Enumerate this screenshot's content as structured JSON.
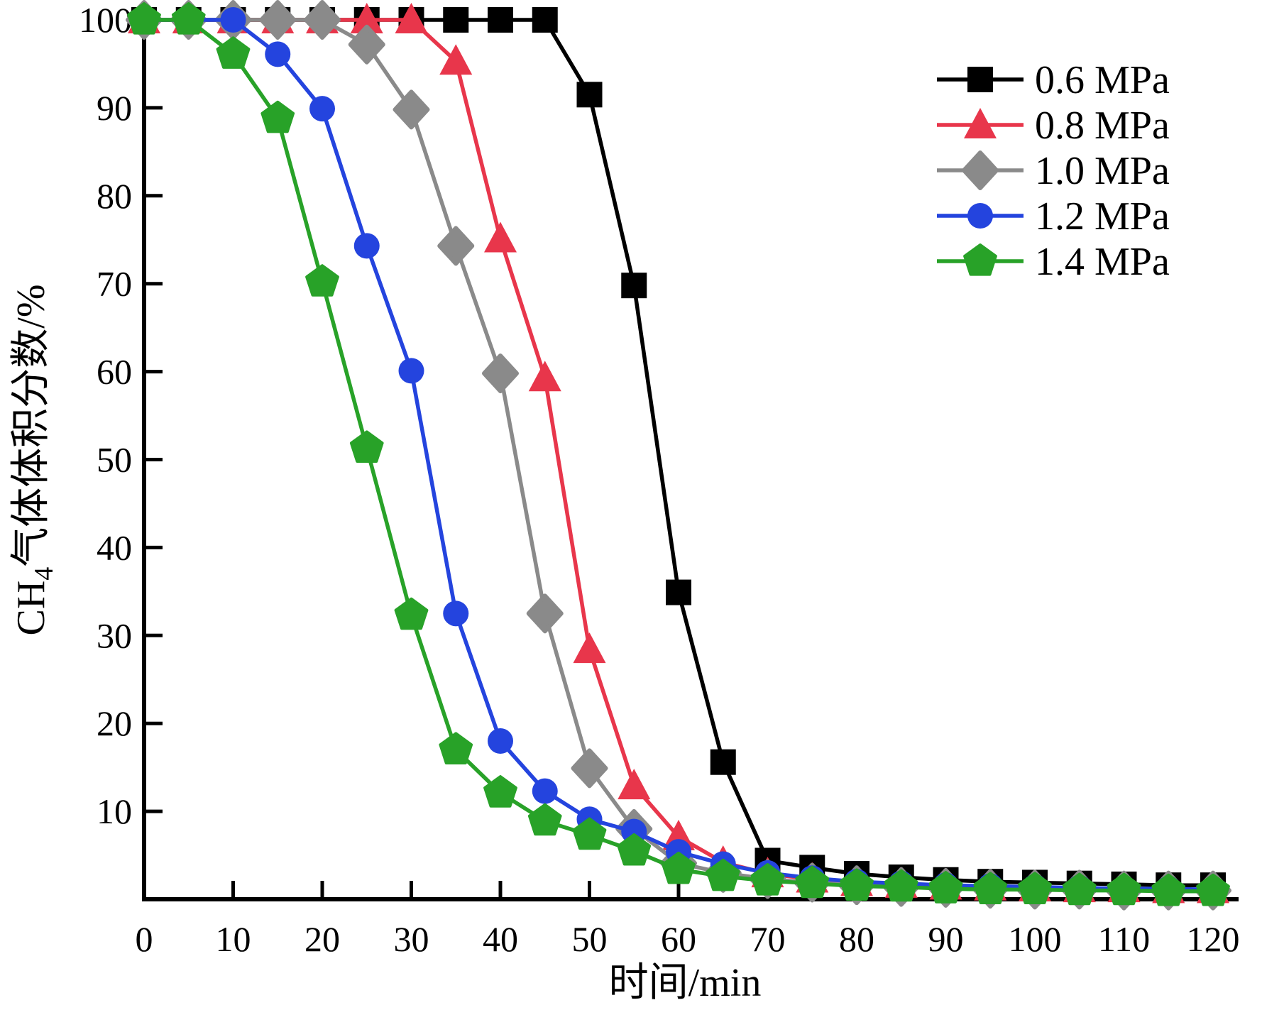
{
  "figure": {
    "background": "#ffffff"
  },
  "chart_data": {
    "type": "line",
    "title": "",
    "xlabel": "时间/min",
    "ylabel": "CH4气体体积分数/%",
    "ylabel_rich": {
      "base": "CH",
      "sub": "4",
      "rest": "气体体积分数/%"
    },
    "xlim": [
      0,
      120
    ],
    "ylim": [
      0,
      100
    ],
    "x_ticks": [
      0,
      10,
      20,
      30,
      40,
      50,
      60,
      70,
      80,
      90,
      100,
      110,
      120
    ],
    "y_ticks": [
      10,
      20,
      30,
      40,
      50,
      60,
      70,
      80,
      90,
      100
    ],
    "grid": false,
    "legend_position": "top-right",
    "x": [
      0,
      5,
      10,
      15,
      20,
      25,
      30,
      35,
      40,
      45,
      50,
      55,
      60,
      65,
      70,
      75,
      80,
      85,
      90,
      95,
      100,
      105,
      110,
      115,
      120
    ],
    "series": [
      {
        "name": "0.6 MPa",
        "color": "#000000",
        "marker": "square",
        "values": [
          100,
          100,
          100,
          100,
          100,
          100,
          100,
          100,
          100,
          100,
          91.5,
          69.8,
          34.9,
          15.6,
          4.4,
          3.6,
          2.9,
          2.5,
          2.2,
          2.0,
          1.9,
          1.8,
          1.7,
          1.6,
          1.6
        ]
      },
      {
        "name": "0.8 MPa",
        "color": "#E8364B",
        "marker": "triangle",
        "values": [
          100,
          100,
          100,
          100,
          100,
          100,
          100,
          95.3,
          75.1,
          59.3,
          28.4,
          12.9,
          7.1,
          4.2,
          2.9,
          2.3,
          1.9,
          1.7,
          1.5,
          1.4,
          1.3,
          1.2,
          1.2,
          1.1,
          1.1
        ]
      },
      {
        "name": "1.0 MPa",
        "color": "#8A8A8A",
        "marker": "diamond",
        "values": [
          100,
          100,
          100,
          100,
          100,
          97.2,
          89.8,
          74.3,
          59.8,
          32.5,
          14.9,
          8.0,
          4.1,
          3.0,
          2.3,
          1.9,
          1.6,
          1.4,
          1.3,
          1.2,
          1.1,
          1.1,
          1.0,
          1.0,
          1.0
        ]
      },
      {
        "name": "1.2 MPa",
        "color": "#2444DE",
        "marker": "circle",
        "values": [
          100,
          100,
          100,
          96.1,
          89.9,
          74.3,
          60.1,
          32.5,
          18.0,
          12.3,
          9.1,
          7.7,
          5.4,
          4.0,
          3.0,
          2.4,
          2.0,
          1.8,
          1.6,
          1.5,
          1.4,
          1.3,
          1.2,
          1.2,
          1.1
        ]
      },
      {
        "name": "1.4 MPa",
        "color": "#28A228",
        "marker": "pentagon",
        "values": [
          100,
          100,
          96.1,
          88.8,
          70.2,
          51.3,
          32.3,
          17.0,
          12.1,
          8.9,
          7.3,
          5.5,
          3.4,
          2.6,
          2.1,
          1.8,
          1.5,
          1.4,
          1.2,
          1.1,
          1.1,
          1.0,
          1.0,
          0.9,
          0.9
        ]
      }
    ]
  }
}
